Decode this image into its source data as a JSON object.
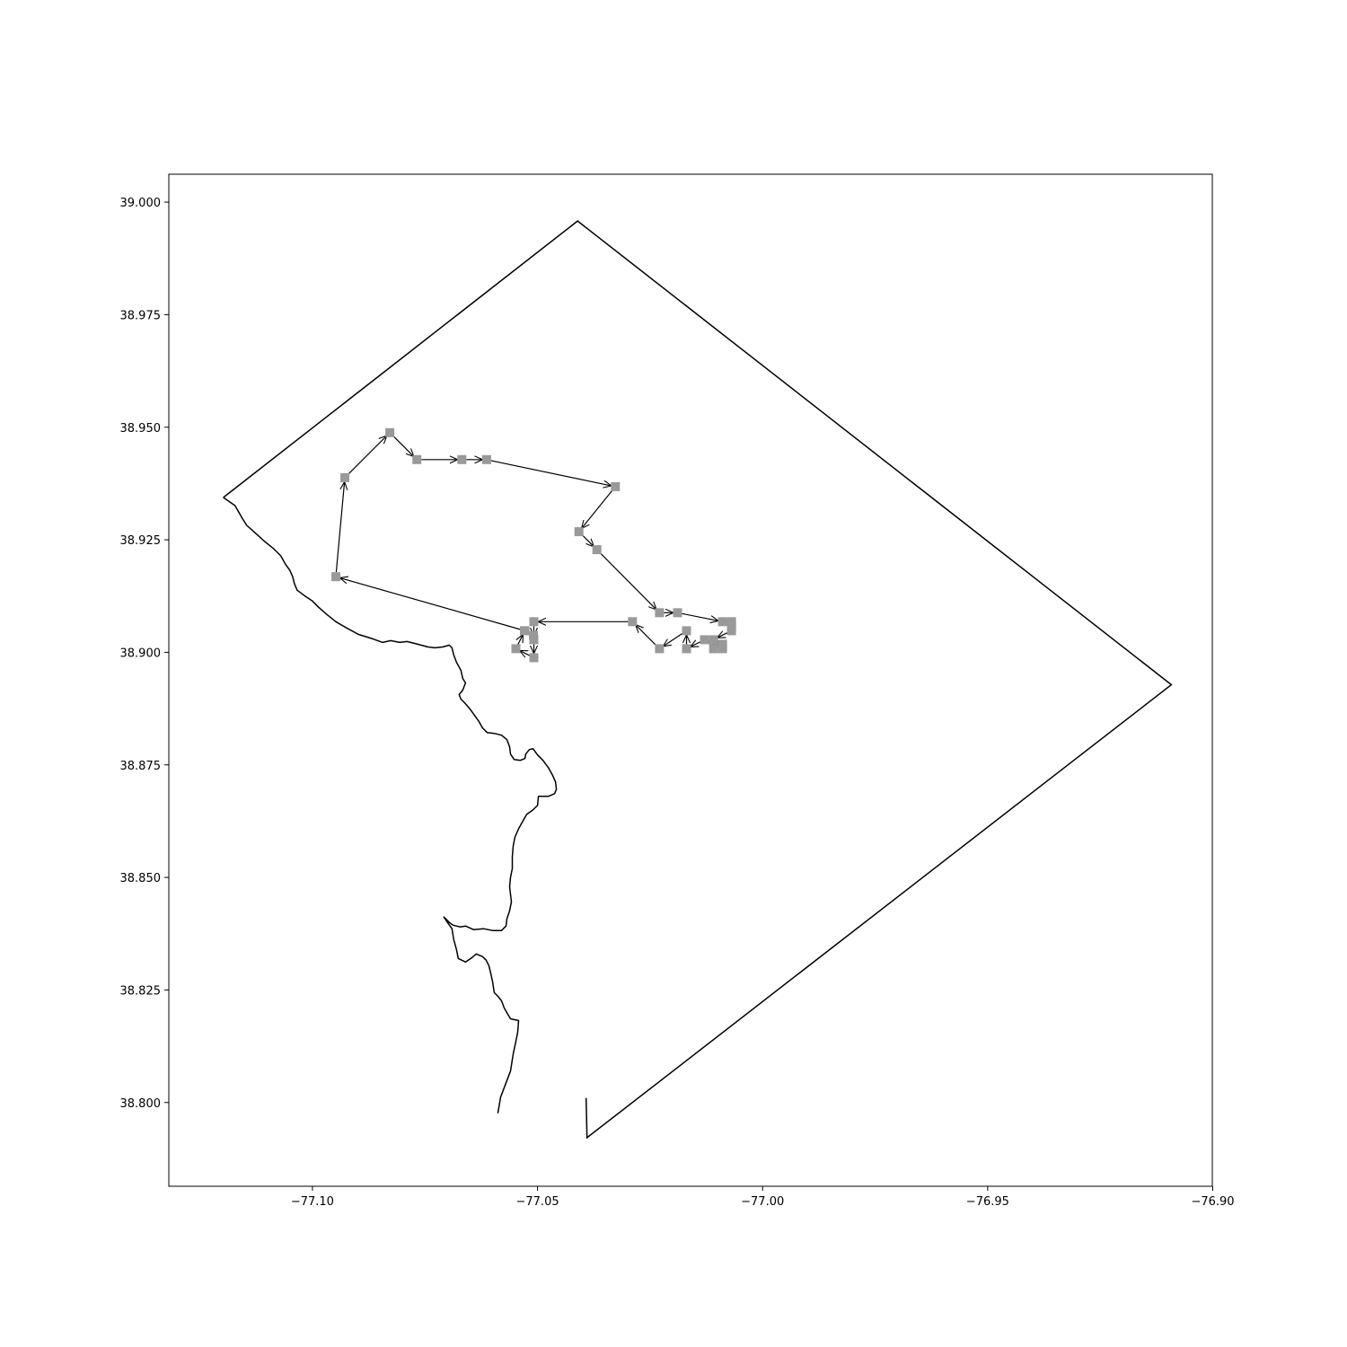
{
  "chart_data": {
    "type": "route-map",
    "title": "",
    "xlabel": "",
    "ylabel": "",
    "xlim": [
      -77.1319,
      -76.9001
    ],
    "ylim": [
      38.7814,
      39.0062
    ],
    "x_ticks": [
      {
        "value": -77.1,
        "label": "−77.10"
      },
      {
        "value": -77.05,
        "label": "−77.05"
      },
      {
        "value": -77.0,
        "label": "−77.00"
      },
      {
        "value": -76.95,
        "label": "−76.95"
      },
      {
        "value": -76.9,
        "label": "−76.90"
      }
    ],
    "y_ticks": [
      {
        "value": 39.0,
        "label": "39.000"
      },
      {
        "value": 38.975,
        "label": "38.975"
      },
      {
        "value": 38.95,
        "label": "38.950"
      },
      {
        "value": 38.925,
        "label": "38.925"
      },
      {
        "value": 38.9,
        "label": "38.900"
      },
      {
        "value": 38.875,
        "label": "38.875"
      },
      {
        "value": 38.85,
        "label": "38.850"
      },
      {
        "value": 38.825,
        "label": "38.825"
      },
      {
        "value": 38.8,
        "label": "38.800"
      }
    ],
    "boundary": [
      [
        -77.1198,
        38.9344
      ],
      [
        -77.1172,
        38.9326
      ],
      [
        -77.1156,
        38.9298
      ],
      [
        -77.1146,
        38.9282
      ],
      [
        -77.113,
        38.9268
      ],
      [
        -77.1106,
        38.9246
      ],
      [
        -77.1086,
        38.923
      ],
      [
        -77.107,
        38.9214
      ],
      [
        -77.106,
        38.9196
      ],
      [
        -77.105,
        38.9182
      ],
      [
        -77.1044,
        38.9168
      ],
      [
        -77.104,
        38.9152
      ],
      [
        -77.1034,
        38.9138
      ],
      [
        -77.1018,
        38.9126
      ],
      [
        -77.1,
        38.9114
      ],
      [
        -77.0986,
        38.91
      ],
      [
        -77.0968,
        38.9084
      ],
      [
        -77.0948,
        38.9068
      ],
      [
        -77.0924,
        38.9054
      ],
      [
        -77.0898,
        38.904
      ],
      [
        -77.0866,
        38.903
      ],
      [
        -77.0844,
        38.9022
      ],
      [
        -77.0826,
        38.9026
      ],
      [
        -77.0806,
        38.9022
      ],
      [
        -77.079,
        38.9024
      ],
      [
        -77.0766,
        38.9018
      ],
      [
        -77.0744,
        38.9012
      ],
      [
        -77.0728,
        38.901
      ],
      [
        -77.071,
        38.9012
      ],
      [
        -77.0696,
        38.9016
      ],
      [
        -77.069,
        38.901
      ],
      [
        -77.0686,
        38.8994
      ],
      [
        -77.068,
        38.8978
      ],
      [
        -77.067,
        38.896
      ],
      [
        -77.0666,
        38.8942
      ],
      [
        -77.066,
        38.8932
      ],
      [
        -77.0666,
        38.8916
      ],
      [
        -77.0674,
        38.8906
      ],
      [
        -77.067,
        38.8896
      ],
      [
        -77.0662,
        38.8888
      ],
      [
        -77.065,
        38.8874
      ],
      [
        -77.064,
        38.886
      ],
      [
        -77.063,
        38.8846
      ],
      [
        -77.0622,
        38.8832
      ],
      [
        -77.0612,
        38.8822
      ],
      [
        -77.0596,
        38.882
      ],
      [
        -77.058,
        38.8816
      ],
      [
        -77.0568,
        38.8806
      ],
      [
        -77.0562,
        38.879
      ],
      [
        -77.056,
        38.8774
      ],
      [
        -77.0552,
        38.8762
      ],
      [
        -77.0538,
        38.876
      ],
      [
        -77.0528,
        38.8764
      ],
      [
        -77.0526,
        38.8774
      ],
      [
        -77.0518,
        38.8784
      ],
      [
        -77.051,
        38.8786
      ],
      [
        -77.05,
        38.8772
      ],
      [
        -77.0488,
        38.876
      ],
      [
        -77.0476,
        38.8744
      ],
      [
        -77.0466,
        38.8726
      ],
      [
        -77.046,
        38.8712
      ],
      [
        -77.0458,
        38.8696
      ],
      [
        -77.0462,
        38.8686
      ],
      [
        -77.0476,
        38.868
      ],
      [
        -77.0498,
        38.868
      ],
      [
        -77.05,
        38.866
      ],
      [
        -77.051,
        38.865
      ],
      [
        -77.0524,
        38.864
      ],
      [
        -77.0532,
        38.8626
      ],
      [
        -77.0542,
        38.8608
      ],
      [
        -77.055,
        38.859
      ],
      [
        -77.0554,
        38.857
      ],
      [
        -77.0556,
        38.8546
      ],
      [
        -77.0556,
        38.852
      ],
      [
        -77.056,
        38.85
      ],
      [
        -77.0562,
        38.848
      ],
      [
        -77.056,
        38.8462
      ],
      [
        -77.0558,
        38.8446
      ],
      [
        -77.0562,
        38.8426
      ],
      [
        -77.0568,
        38.8408
      ],
      [
        -77.057,
        38.8392
      ],
      [
        -77.058,
        38.8382
      ],
      [
        -77.06,
        38.8382
      ],
      [
        -77.062,
        38.8386
      ],
      [
        -77.0642,
        38.8384
      ],
      [
        -77.066,
        38.8392
      ],
      [
        -77.0672,
        38.839
      ],
      [
        -77.0688,
        38.8394
      ],
      [
        -77.0696,
        38.84
      ],
      [
        -77.0708,
        38.8412
      ],
      [
        -77.07,
        38.84
      ],
      [
        -77.069,
        38.8386
      ],
      [
        -77.0686,
        38.8362
      ],
      [
        -77.068,
        38.834
      ],
      [
        -77.0676,
        38.832
      ],
      [
        -77.066,
        38.8312
      ],
      [
        -77.0648,
        38.832
      ],
      [
        -77.0636,
        38.833
      ],
      [
        -77.0622,
        38.8324
      ],
      [
        -77.0614,
        38.8316
      ],
      [
        -77.0608,
        38.8304
      ],
      [
        -77.0604,
        38.8288
      ],
      [
        -77.06,
        38.827
      ],
      [
        -77.0596,
        38.8244
      ],
      [
        -77.0588,
        38.8236
      ],
      [
        -77.058,
        38.8226
      ],
      [
        -77.0574,
        38.821
      ],
      [
        -77.0566,
        38.8196
      ],
      [
        -77.056,
        38.8186
      ],
      [
        -77.0542,
        38.8182
      ],
      [
        -77.0544,
        38.8156
      ],
      [
        -77.0548,
        38.8136
      ],
      [
        -77.0554,
        38.8108
      ],
      [
        -77.056,
        38.807
      ],
      [
        -77.0582,
        38.8012
      ],
      [
        -77.0588,
        38.7976
      ],
      [
        -77.0401,
        38.9966
      ],
      [
        -77.0586,
        38.7972
      ]
    ],
    "route": [
      [
        -77.0613,
        38.9428
      ],
      [
        -77.0327,
        38.9368
      ],
      [
        -77.0408,
        38.9268
      ],
      [
        -77.0368,
        38.9228
      ],
      [
        -77.0229,
        38.9088
      ],
      [
        -77.0189,
        38.9088
      ],
      [
        -77.0089,
        38.9068
      ],
      [
        -77.0069,
        38.9068
      ],
      [
        -77.0069,
        38.9048
      ],
      [
        -77.0109,
        38.9028
      ],
      [
        -77.0089,
        38.9008
      ],
      [
        -77.0129,
        38.9028
      ],
      [
        -77.0169,
        38.9008
      ],
      [
        -77.0169,
        38.9048
      ],
      [
        -77.0229,
        38.9008
      ],
      [
        -77.0289,
        38.9068
      ],
      [
        -77.0508,
        38.9068
      ],
      [
        -77.0508,
        38.9028
      ],
      [
        -77.0508,
        38.8988
      ],
      [
        -77.0548,
        38.9008
      ],
      [
        -77.0528,
        38.9048
      ],
      [
        -77.0948,
        38.9168
      ],
      [
        -77.0928,
        38.9388
      ],
      [
        -77.0828,
        38.9488
      ],
      [
        -77.0768,
        38.9428
      ],
      [
        -77.0668,
        38.9428
      ]
    ],
    "route_order_note_stops": 26,
    "extra_stops": [
      [
        -77.0529,
        38.9048
      ],
      [
        -77.0509,
        38.9038
      ],
      [
        -77.0089,
        38.9018
      ],
      [
        -77.0109,
        38.9008
      ],
      [
        -77.0069,
        38.9058
      ]
    ],
    "stop_color": "#999999",
    "line_color": "#000000"
  }
}
